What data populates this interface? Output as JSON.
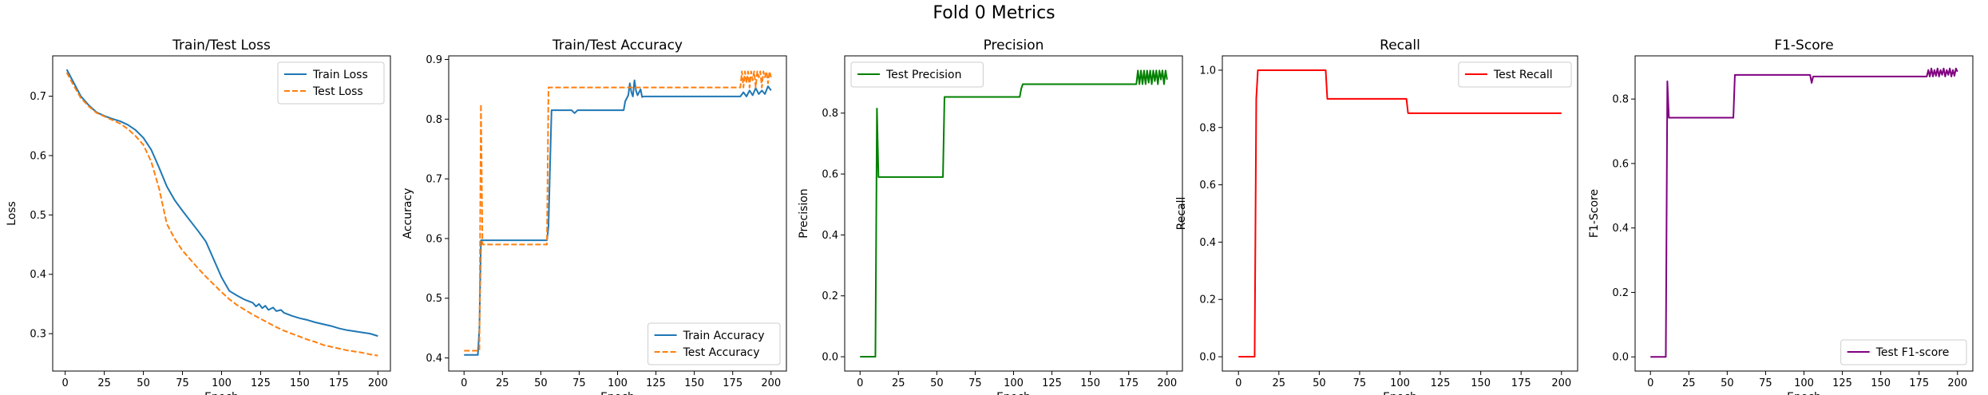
{
  "figure": {
    "title": "Fold 0 Metrics"
  },
  "chart_data": [
    {
      "type": "line",
      "title": "Train/Test Loss",
      "xlabel": "Epoch",
      "ylabel": "Loss",
      "xlim": [
        -8,
        208
      ],
      "ylim": [
        0.237,
        0.768
      ],
      "xticks": [
        0,
        25,
        50,
        75,
        100,
        125,
        150,
        175,
        200
      ],
      "yticks": [
        0.3,
        0.4,
        0.5,
        0.6,
        0.7
      ],
      "ytick_decimals": 1,
      "legend": "upper right",
      "grid": false,
      "series": [
        {
          "name": "Train Loss",
          "color": "#1f77b4",
          "dash": "solid",
          "points": [
            [
              1,
              0.745
            ],
            [
              5,
              0.725
            ],
            [
              10,
              0.7
            ],
            [
              15,
              0.685
            ],
            [
              20,
              0.673
            ],
            [
              25,
              0.667
            ],
            [
              30,
              0.662
            ],
            [
              35,
              0.658
            ],
            [
              40,
              0.652
            ],
            [
              45,
              0.643
            ],
            [
              50,
              0.63
            ],
            [
              55,
              0.61
            ],
            [
              60,
              0.58
            ],
            [
              65,
              0.548
            ],
            [
              70,
              0.525
            ],
            [
              75,
              0.507
            ],
            [
              80,
              0.49
            ],
            [
              85,
              0.473
            ],
            [
              90,
              0.455
            ],
            [
              95,
              0.425
            ],
            [
              100,
              0.395
            ],
            [
              105,
              0.372
            ],
            [
              110,
              0.364
            ],
            [
              115,
              0.357
            ],
            [
              120,
              0.352
            ],
            [
              122,
              0.346
            ],
            [
              124,
              0.35
            ],
            [
              126,
              0.343
            ],
            [
              128,
              0.347
            ],
            [
              130,
              0.34
            ],
            [
              133,
              0.344
            ],
            [
              135,
              0.338
            ],
            [
              138,
              0.34
            ],
            [
              140,
              0.335
            ],
            [
              145,
              0.33
            ],
            [
              150,
              0.326
            ],
            [
              155,
              0.323
            ],
            [
              160,
              0.319
            ],
            [
              165,
              0.316
            ],
            [
              170,
              0.313
            ],
            [
              175,
              0.309
            ],
            [
              180,
              0.306
            ],
            [
              185,
              0.304
            ],
            [
              190,
              0.302
            ],
            [
              195,
              0.3
            ],
            [
              200,
              0.296
            ]
          ]
        },
        {
          "name": "Test Loss",
          "color": "#ff7f0e",
          "dash": "dashed",
          "points": [
            [
              1,
              0.74
            ],
            [
              5,
              0.72
            ],
            [
              10,
              0.697
            ],
            [
              15,
              0.683
            ],
            [
              20,
              0.672
            ],
            [
              25,
              0.666
            ],
            [
              30,
              0.66
            ],
            [
              35,
              0.654
            ],
            [
              40,
              0.645
            ],
            [
              45,
              0.633
            ],
            [
              50,
              0.618
            ],
            [
              55,
              0.59
            ],
            [
              60,
              0.545
            ],
            [
              65,
              0.485
            ],
            [
              70,
              0.46
            ],
            [
              75,
              0.44
            ],
            [
              80,
              0.425
            ],
            [
              85,
              0.41
            ],
            [
              90,
              0.396
            ],
            [
              95,
              0.383
            ],
            [
              100,
              0.37
            ],
            [
              105,
              0.358
            ],
            [
              110,
              0.348
            ],
            [
              115,
              0.34
            ],
            [
              120,
              0.332
            ],
            [
              125,
              0.325
            ],
            [
              130,
              0.318
            ],
            [
              135,
              0.311
            ],
            [
              140,
              0.305
            ],
            [
              145,
              0.3
            ],
            [
              150,
              0.295
            ],
            [
              155,
              0.29
            ],
            [
              160,
              0.286
            ],
            [
              165,
              0.281
            ],
            [
              170,
              0.278
            ],
            [
              175,
              0.275
            ],
            [
              180,
              0.272
            ],
            [
              185,
              0.27
            ],
            [
              190,
              0.268
            ],
            [
              195,
              0.265
            ],
            [
              200,
              0.263
            ]
          ]
        }
      ]
    },
    {
      "type": "line",
      "title": "Train/Test Accuracy",
      "xlabel": "Epoch",
      "ylabel": "Accuracy",
      "xlim": [
        -10,
        210
      ],
      "ylim": [
        0.378,
        0.906
      ],
      "xticks": [
        0,
        25,
        50,
        75,
        100,
        125,
        150,
        175,
        200
      ],
      "yticks": [
        0.4,
        0.5,
        0.6,
        0.7,
        0.8,
        0.9
      ],
      "ytick_decimals": 1,
      "legend": "lower right",
      "grid": false,
      "series": [
        {
          "name": "Train Accuracy",
          "color": "#1f77b4",
          "dash": "solid",
          "points": [
            [
              0,
              0.405
            ],
            [
              8,
              0.405
            ],
            [
              9,
              0.405
            ],
            [
              10,
              0.45
            ],
            [
              11,
              0.597
            ],
            [
              54,
              0.597
            ],
            [
              55,
              0.62
            ],
            [
              56,
              0.72
            ],
            [
              57,
              0.815
            ],
            [
              70,
              0.815
            ],
            [
              72,
              0.81
            ],
            [
              74,
              0.815
            ],
            [
              104,
              0.815
            ],
            [
              105,
              0.83
            ],
            [
              107,
              0.84
            ],
            [
              108,
              0.86
            ],
            [
              109,
              0.845
            ],
            [
              110,
              0.838
            ],
            [
              111,
              0.865
            ],
            [
              112,
              0.848
            ],
            [
              113,
              0.84
            ],
            [
              115,
              0.85
            ],
            [
              116,
              0.837
            ],
            [
              117,
              0.838
            ],
            [
              180,
              0.838
            ],
            [
              182,
              0.845
            ],
            [
              184,
              0.838
            ],
            [
              186,
              0.848
            ],
            [
              188,
              0.84
            ],
            [
              190,
              0.852
            ],
            [
              192,
              0.842
            ],
            [
              194,
              0.848
            ],
            [
              196,
              0.842
            ],
            [
              198,
              0.855
            ],
            [
              200,
              0.848
            ]
          ]
        },
        {
          "name": "Test Accuracy",
          "color": "#ff7f0e",
          "dash": "dashed",
          "points": [
            [
              0,
              0.412
            ],
            [
              9,
              0.412
            ],
            [
              10,
              0.412
            ],
            [
              11,
              0.825
            ],
            [
              12,
              0.59
            ],
            [
              54,
              0.59
            ],
            [
              55,
              0.853
            ],
            [
              180,
              0.853
            ],
            [
              181,
              0.88
            ],
            [
              182,
              0.853
            ],
            [
              183,
              0.88
            ],
            [
              184,
              0.86
            ],
            [
              185,
              0.88
            ],
            [
              186,
              0.853
            ],
            [
              187,
              0.88
            ],
            [
              188,
              0.865
            ],
            [
              189,
              0.88
            ],
            [
              190,
              0.853
            ],
            [
              191,
              0.88
            ],
            [
              192,
              0.87
            ],
            [
              193,
              0.88
            ],
            [
              194,
              0.853
            ],
            [
              195,
              0.88
            ],
            [
              196,
              0.87
            ],
            [
              197,
              0.88
            ],
            [
              198,
              0.86
            ],
            [
              199,
              0.88
            ],
            [
              200,
              0.87
            ]
          ]
        }
      ]
    },
    {
      "type": "line",
      "title": "Precision",
      "xlabel": "Epoch",
      "ylabel": "Precision",
      "xlim": [
        -10,
        210
      ],
      "ylim": [
        -0.047,
        0.988
      ],
      "xticks": [
        0,
        25,
        50,
        75,
        100,
        125,
        150,
        175,
        200
      ],
      "yticks": [
        0.0,
        0.2,
        0.4,
        0.6,
        0.8
      ],
      "ytick_decimals": 1,
      "legend": "upper left",
      "grid": false,
      "series": [
        {
          "name": "Test Precision",
          "color": "#008000",
          "dash": "solid",
          "points": [
            [
              0,
              0.0
            ],
            [
              9,
              0.0
            ],
            [
              10,
              0.0
            ],
            [
              11,
              0.815
            ],
            [
              12,
              0.59
            ],
            [
              54,
              0.59
            ],
            [
              55,
              0.853
            ],
            [
              104,
              0.853
            ],
            [
              105,
              0.88
            ],
            [
              106,
              0.895
            ],
            [
              180,
              0.895
            ],
            [
              181,
              0.94
            ],
            [
              182,
              0.895
            ],
            [
              183,
              0.94
            ],
            [
              184,
              0.895
            ],
            [
              185,
              0.94
            ],
            [
              186,
              0.895
            ],
            [
              187,
              0.94
            ],
            [
              188,
              0.9
            ],
            [
              189,
              0.94
            ],
            [
              190,
              0.895
            ],
            [
              191,
              0.94
            ],
            [
              192,
              0.905
            ],
            [
              193,
              0.94
            ],
            [
              194,
              0.895
            ],
            [
              195,
              0.94
            ],
            [
              196,
              0.91
            ],
            [
              197,
              0.94
            ],
            [
              198,
              0.895
            ],
            [
              199,
              0.94
            ],
            [
              200,
              0.91
            ]
          ]
        }
      ]
    },
    {
      "type": "line",
      "title": "Recall",
      "xlabel": "Epoch",
      "ylabel": "Recall",
      "xlim": [
        -10,
        210
      ],
      "ylim": [
        -0.05,
        1.05
      ],
      "xticks": [
        0,
        25,
        50,
        75,
        100,
        125,
        150,
        175,
        200
      ],
      "yticks": [
        0.0,
        0.2,
        0.4,
        0.6,
        0.8,
        1.0
      ],
      "ytick_decimals": 1,
      "legend": "upper right",
      "grid": false,
      "series": [
        {
          "name": "Test Recall",
          "color": "#ff0000",
          "dash": "solid",
          "points": [
            [
              0,
              0.0
            ],
            [
              9,
              0.0
            ],
            [
              10,
              0.0
            ],
            [
              11,
              0.9
            ],
            [
              12,
              1.0
            ],
            [
              54,
              1.0
            ],
            [
              55,
              0.9
            ],
            [
              104,
              0.9
            ],
            [
              105,
              0.85
            ],
            [
              200,
              0.85
            ]
          ]
        }
      ]
    },
    {
      "type": "line",
      "title": "F1-Score",
      "xlabel": "Epoch",
      "ylabel": "F1-Score",
      "xlim": [
        -10,
        210
      ],
      "ylim": [
        -0.044,
        0.934
      ],
      "xticks": [
        0,
        25,
        50,
        75,
        100,
        125,
        150,
        175,
        200
      ],
      "yticks": [
        0.0,
        0.2,
        0.4,
        0.6,
        0.8
      ],
      "ytick_decimals": 1,
      "legend": "lower right",
      "grid": false,
      "series": [
        {
          "name": "Test F1-score",
          "color": "#800080",
          "dash": "solid",
          "points": [
            [
              0,
              0.0
            ],
            [
              9,
              0.0
            ],
            [
              10,
              0.0
            ],
            [
              11,
              0.855
            ],
            [
              12,
              0.742
            ],
            [
              54,
              0.742
            ],
            [
              55,
              0.875
            ],
            [
              104,
              0.875
            ],
            [
              105,
              0.85
            ],
            [
              106,
              0.87
            ],
            [
              180,
              0.87
            ],
            [
              181,
              0.89
            ],
            [
              182,
              0.87
            ],
            [
              183,
              0.895
            ],
            [
              184,
              0.87
            ],
            [
              185,
              0.89
            ],
            [
              186,
              0.872
            ],
            [
              187,
              0.895
            ],
            [
              188,
              0.87
            ],
            [
              189,
              0.89
            ],
            [
              190,
              0.875
            ],
            [
              191,
              0.895
            ],
            [
              192,
              0.87
            ],
            [
              193,
              0.89
            ],
            [
              194,
              0.875
            ],
            [
              195,
              0.895
            ],
            [
              196,
              0.87
            ],
            [
              197,
              0.89
            ],
            [
              198,
              0.872
            ],
            [
              199,
              0.895
            ],
            [
              200,
              0.885
            ]
          ]
        }
      ]
    }
  ]
}
